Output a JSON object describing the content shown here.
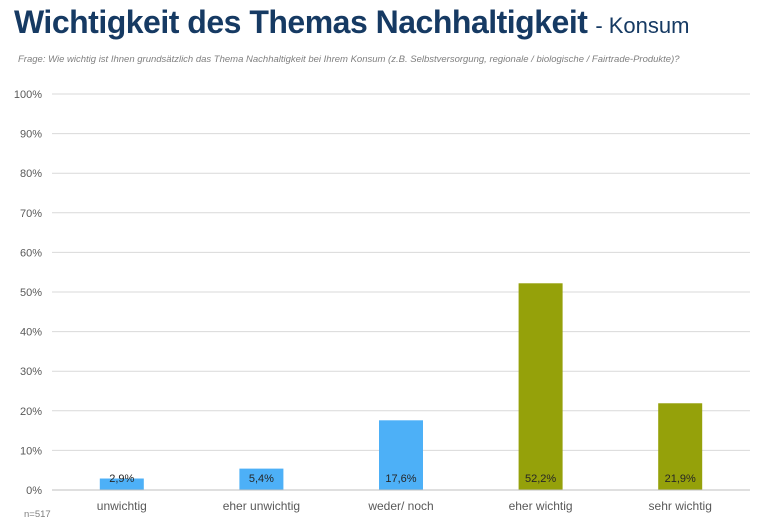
{
  "header": {
    "title": "Wichtigkeit des Themas Nachhaltigkeit",
    "separator": "-",
    "subtitle": "Konsum",
    "question": "Frage: Wie wichtig ist Ihnen grundsätzlich das Thema Nachhaltigkeit bei Ihrem Konsum (z.B. Selbstversorgung, regionale / biologische / Fairtrade-Produkte)?"
  },
  "footer": {
    "sample_size": "n=517"
  },
  "colors": {
    "title": "#163a63",
    "blue": "#4db0f7",
    "olive": "#95a10a",
    "grid": "#d9d9d9"
  },
  "chart_data": {
    "type": "bar",
    "categories": [
      "unwichtig",
      "eher unwichtig",
      "weder/ noch",
      "eher wichtig",
      "sehr wichtig"
    ],
    "values": [
      2.9,
      5.4,
      17.6,
      52.2,
      21.9
    ],
    "data_labels": [
      "2,9%",
      "5,4%",
      "17,6%",
      "52,2%",
      "21,9%"
    ],
    "bar_colors": [
      "#4db0f7",
      "#4db0f7",
      "#4db0f7",
      "#95a10a",
      "#95a10a"
    ],
    "ylim": [
      0,
      100
    ],
    "yticks": [
      0,
      10,
      20,
      30,
      40,
      50,
      60,
      70,
      80,
      90,
      100
    ],
    "ytick_labels": [
      "0%",
      "10%",
      "20%",
      "30%",
      "40%",
      "50%",
      "60%",
      "70%",
      "80%",
      "90%",
      "100%"
    ],
    "grid": true,
    "legend": "none"
  }
}
